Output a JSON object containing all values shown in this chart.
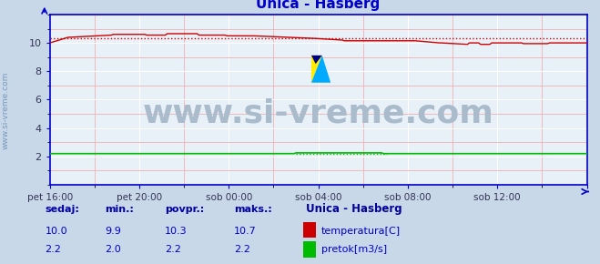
{
  "title": "Unica - Hasberg",
  "title_color": "#0000cc",
  "bg_color": "#c8d8e8",
  "plot_bg_color": "#e8f0f8",
  "grid_color": "#ffffff",
  "minor_grid_color": "#f0b0b0",
  "border_color": "#0000cc",
  "x_labels": [
    "pet 16:00",
    "pet 20:00",
    "sob 00:00",
    "sob 04:00",
    "sob 08:00",
    "sob 12:00"
  ],
  "ylim": [
    0,
    12
  ],
  "yticks": [
    2,
    4,
    6,
    8,
    10
  ],
  "temp_avg": 10.3,
  "temp_color": "#cc0000",
  "flow_color": "#00bb00",
  "flow_avg": 2.2,
  "watermark": "www.si-vreme.com",
  "watermark_color": "#aabbcc",
  "watermark_fontsize": 26,
  "legend_title": "Unica - Hasberg",
  "legend_title_color": "#000099",
  "legend_color": "#0000cc",
  "bottom_label_color": "#0000aa",
  "sedaj_val_temp": 10.0,
  "min_val_temp": 9.9,
  "povpr_val_temp": 10.3,
  "maks_val_temp": 10.7,
  "sedaj_val_flow": 2.2,
  "min_val_flow": 2.0,
  "povpr_val_flow": 2.2,
  "maks_val_flow": 2.2,
  "n_points": 289,
  "left_label": "www.si-vreme.com",
  "left_label_color": "#7799bb"
}
